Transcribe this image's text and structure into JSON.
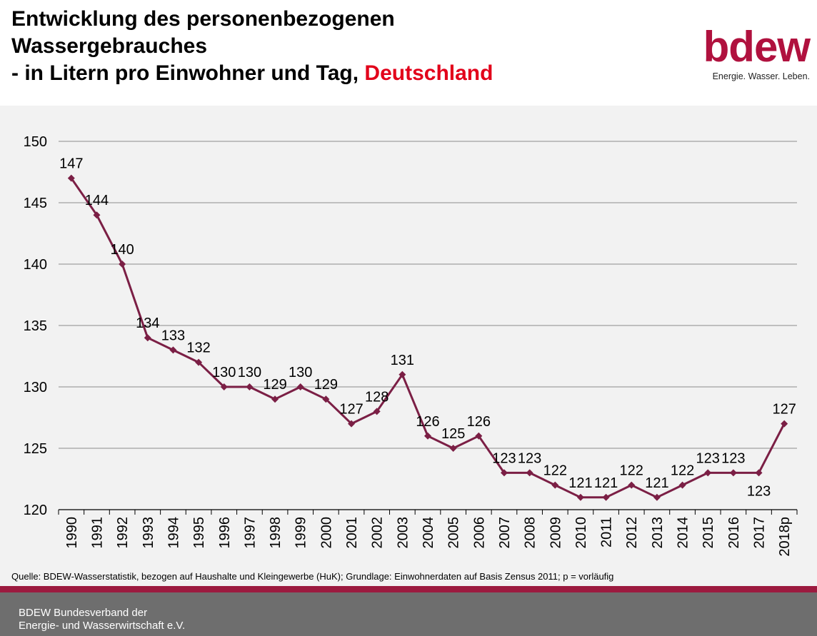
{
  "title": {
    "line1": "Entwicklung des personenbezogenen",
    "line2": "Wassergebrauches",
    "line3_prefix": "- in Litern pro Einwohner und Tag, ",
    "line3_accent": "Deutschland"
  },
  "logo": {
    "word": "bdew",
    "tagline": "Energie. Wasser. Leben."
  },
  "source": "Quelle: BDEW-Wasserstatistik, bezogen auf Haushalte und Kleingewerbe (HuK); Grundlage: Einwohnerdaten auf Basis Zensus 2011; p = vorläufig",
  "footer": {
    "line1": "BDEW Bundesverband der",
    "line2": "Energie- und Wasserwirtschaft e.V."
  },
  "colors": {
    "series": "#7b1f45",
    "accent_red": "#e2001a",
    "logo": "#b0113e",
    "footer_bg": "#6e6e6e",
    "footer_stripe": "#9c1a3f"
  },
  "chart_data": {
    "type": "line",
    "title": "",
    "xlabel": "",
    "ylabel": "",
    "ylim": [
      120,
      150
    ],
    "yticks": [
      120,
      125,
      130,
      135,
      140,
      145,
      150
    ],
    "grid": true,
    "categories": [
      "1990",
      "1991",
      "1992",
      "1993",
      "1994",
      "1995",
      "1996",
      "1997",
      "1998",
      "1999",
      "2000",
      "2001",
      "2002",
      "2003",
      "2004",
      "2005",
      "2006",
      "2007",
      "2008",
      "2009",
      "2010",
      "2011",
      "2012",
      "2013",
      "2014",
      "2015",
      "2016",
      "2017",
      "2018p"
    ],
    "values": [
      147,
      144,
      140,
      134,
      133,
      132,
      130,
      130,
      129,
      130,
      129,
      127,
      128,
      131,
      126,
      125,
      126,
      123,
      123,
      122,
      121,
      121,
      122,
      121,
      122,
      123,
      123,
      123,
      127
    ]
  }
}
